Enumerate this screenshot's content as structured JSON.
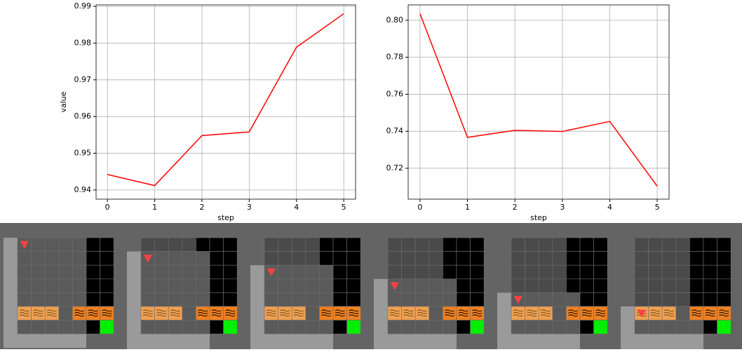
{
  "chart_data": [
    {
      "type": "line",
      "x": [
        0,
        1,
        2,
        3,
        4,
        5
      ],
      "values": [
        0.9442,
        0.9412,
        0.9548,
        0.9558,
        0.9789,
        0.988
      ],
      "color": "#ff0000",
      "xlim": [
        -0.24,
        5.25
      ],
      "ylim": [
        0.9375,
        0.9904
      ],
      "xticks": [
        0,
        1,
        2,
        3,
        4,
        5
      ],
      "yticks": [
        0.94,
        0.95,
        0.96,
        0.97,
        0.98,
        0.99
      ],
      "xlabel": "step",
      "ylabel": "value",
      "grid": true
    },
    {
      "type": "line",
      "x": [
        0,
        1,
        2,
        3,
        4,
        5
      ],
      "values": [
        0.8035,
        0.7367,
        0.7405,
        0.7399,
        0.7453,
        0.7103
      ],
      "color": "#ff0000",
      "xlim": [
        -0.25,
        5.25
      ],
      "ylim": [
        0.7033,
        0.8083
      ],
      "xticks": [
        0,
        1,
        2,
        3,
        4,
        5
      ],
      "yticks": [
        0.72,
        0.74,
        0.76,
        0.78,
        {
          "value": 0.8,
          "label": "0.80"
        }
      ],
      "xlabel": "step",
      "grid": true
    }
  ]
}
